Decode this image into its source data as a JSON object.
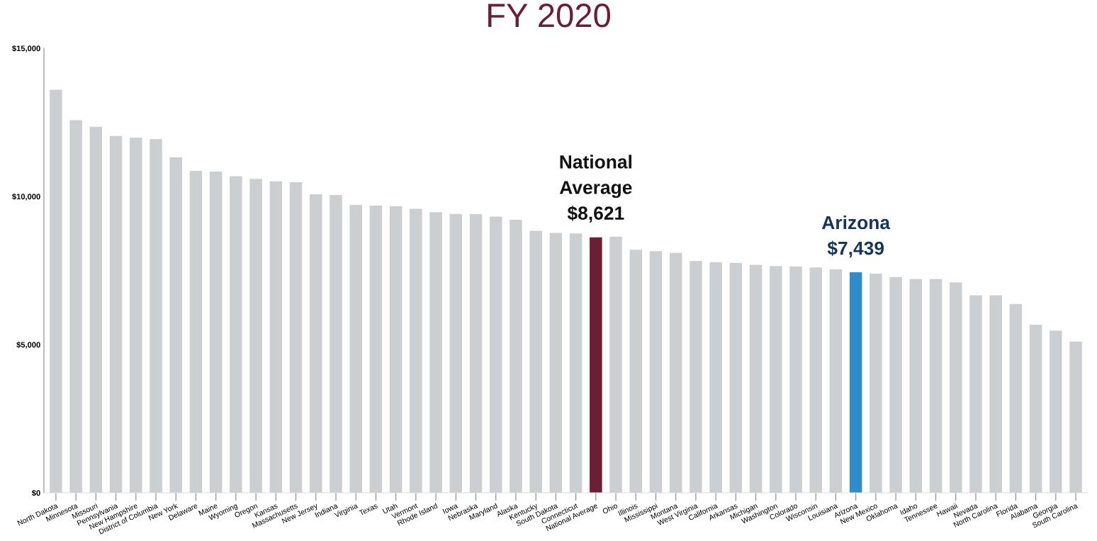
{
  "chart_data": {
    "type": "bar",
    "title": "FY 2020",
    "categories": [
      "North Dakota",
      "Minnesota",
      "Missouri",
      "Pennsylvania",
      "New Hampshire",
      "District of Columbia",
      "New York",
      "Delaware",
      "Maine",
      "Wyoming",
      "Oregon",
      "Kansas",
      "Massachusetts",
      "New Jersey",
      "Indiana",
      "Virginia",
      "Texas",
      "Utah",
      "Vermont",
      "Rhode Island",
      "Iowa",
      "Nebraska",
      "Maryland",
      "Alaska",
      "Kentucky",
      "South Dakota",
      "Connecticut",
      "National Average",
      "Ohio",
      "Illinois",
      "Mississippi",
      "Montana",
      "West Virginia",
      "California",
      "Arkansas",
      "Michigan",
      "Washington",
      "Colorado",
      "Wisconsin",
      "Louisiana",
      "Arizona",
      "New Mexico",
      "Oklahoma",
      "Idaho",
      "Tennessee",
      "Hawaii",
      "Nevada",
      "North Carolina",
      "Florida",
      "Alabama",
      "Georgia",
      "South Carolina"
    ],
    "values": [
      13600,
      12570,
      12350,
      12040,
      11980,
      11930,
      11320,
      10860,
      10840,
      10680,
      10590,
      10510,
      10480,
      10070,
      10050,
      9710,
      9690,
      9670,
      9580,
      9470,
      9410,
      9400,
      9320,
      9210,
      8840,
      8770,
      8750,
      8621,
      8640,
      8200,
      8150,
      8090,
      7820,
      7780,
      7760,
      7690,
      7650,
      7640,
      7600,
      7540,
      7439,
      7390,
      7280,
      7210,
      7210,
      7100,
      6660,
      6660,
      6370,
      5670,
      5470,
      5100
    ],
    "colors": [
      "#cbcfd1",
      "#cbcfd1",
      "#cbcfd1",
      "#cbcfd1",
      "#cbcfd1",
      "#cbcfd1",
      "#cbcfd1",
      "#cbcfd1",
      "#cbcfd1",
      "#cbcfd1",
      "#cbcfd1",
      "#cbcfd1",
      "#cbcfd1",
      "#cbcfd1",
      "#cbcfd1",
      "#cbcfd1",
      "#cbcfd1",
      "#cbcfd1",
      "#cbcfd1",
      "#cbcfd1",
      "#cbcfd1",
      "#cbcfd1",
      "#cbcfd1",
      "#cbcfd1",
      "#cbcfd1",
      "#cbcfd1",
      "#cbcfd1",
      "#6b1f37",
      "#cbcfd1",
      "#cbcfd1",
      "#cbcfd1",
      "#cbcfd1",
      "#cbcfd1",
      "#cbcfd1",
      "#cbcfd1",
      "#cbcfd1",
      "#cbcfd1",
      "#cbcfd1",
      "#cbcfd1",
      "#cbcfd1",
      "#2f8ccc",
      "#cbcfd1",
      "#cbcfd1",
      "#cbcfd1",
      "#cbcfd1",
      "#cbcfd1",
      "#cbcfd1",
      "#cbcfd1",
      "#cbcfd1",
      "#cbcfd1",
      "#cbcfd1",
      "#cbcfd1"
    ],
    "ylim": [
      0,
      15000
    ],
    "yticks": [
      {
        "value": 0,
        "label": "$0"
      },
      {
        "value": 5000,
        "label": "$5,000"
      },
      {
        "value": 10000,
        "label": "$10,000"
      },
      {
        "value": 15000,
        "label": "$15,000"
      }
    ],
    "annotations": [
      {
        "text": "National\nAverage\n$8,621",
        "x": "National Average",
        "y": 8621
      },
      {
        "text": "Arizona\n$7,439",
        "x": "Arizona",
        "y": 7439
      }
    ]
  }
}
